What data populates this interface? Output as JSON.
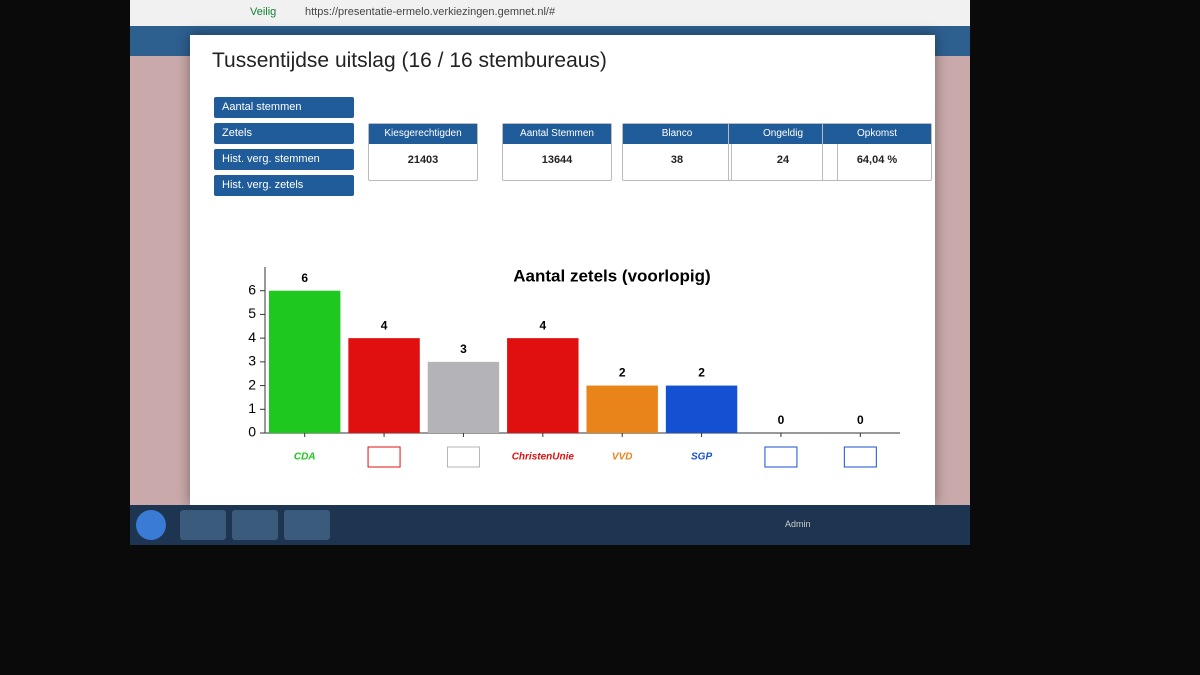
{
  "browser": {
    "security": "Veilig",
    "url": "https://presentatie-ermelo.verkiezingen.gemnet.nl/#"
  },
  "modal": {
    "title": "Tussentijdse uitslag (16 / 16 stembureaus)",
    "buttons": [
      "Aantal stemmen",
      "Zetels",
      "Hist. verg. stemmen",
      "Hist. verg. zetels"
    ],
    "stats": [
      {
        "label": "Kiesgerechtigden",
        "value": "21403"
      },
      {
        "label": "Aantal Stemmen",
        "value": "13644"
      },
      {
        "label": "Blanco",
        "value": "38"
      },
      {
        "label": "Ongeldig",
        "value": "24"
      },
      {
        "label": "Opkomst",
        "value": "64,04 %"
      }
    ]
  },
  "chart_data": {
    "type": "bar",
    "title": "Aantal zetels (voorlopig)",
    "categories": [
      "CDA",
      null,
      null,
      "ChristenUnie",
      "VVD",
      "SGP",
      null,
      null
    ],
    "values": [
      6,
      4,
      3,
      4,
      2,
      2,
      0,
      0
    ],
    "colors": [
      "#1ec81e",
      "#e01010",
      "#b4b4b8",
      "#e01010",
      "#e8841a",
      "#1450d2",
      "#1450d2",
      "#1450d2"
    ],
    "ylim": [
      0,
      7
    ],
    "yticks": [
      0,
      1,
      2,
      3,
      4,
      5,
      6
    ]
  },
  "taskbar": {
    "user": "Admin"
  }
}
